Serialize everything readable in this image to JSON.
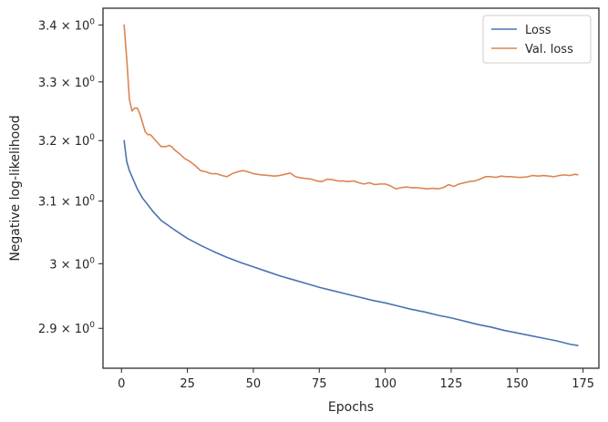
{
  "chart_data": {
    "type": "line",
    "title": "",
    "xlabel": "Epochs",
    "ylabel": "Negative log-likelihood",
    "yscale": "log",
    "xlim": [
      -7,
      181
    ],
    "ylim": [
      2.84,
      3.43
    ],
    "xticks": [
      0,
      25,
      50,
      75,
      100,
      125,
      150,
      175
    ],
    "yticks": [
      {
        "value": 2.9,
        "mantissa": "2.9",
        "exp": "0"
      },
      {
        "value": 3.0,
        "mantissa": "3",
        "exp": "0"
      },
      {
        "value": 3.1,
        "mantissa": "3.1",
        "exp": "0"
      },
      {
        "value": 3.2,
        "mantissa": "3.2",
        "exp": "0"
      },
      {
        "value": 3.3,
        "mantissa": "3.3",
        "exp": "0"
      },
      {
        "value": 3.4,
        "mantissa": "3.4",
        "exp": "0"
      }
    ],
    "grid": false,
    "legend_position": "top-right",
    "series": [
      {
        "name": "Loss",
        "color": "#4c72b0",
        "x": [
          1,
          2,
          3,
          4,
          5,
          6,
          8,
          10,
          12,
          15,
          18,
          20,
          25,
          30,
          35,
          40,
          45,
          50,
          55,
          60,
          65,
          70,
          75,
          80,
          85,
          90,
          95,
          100,
          105,
          110,
          115,
          120,
          125,
          130,
          135,
          140,
          145,
          150,
          155,
          160,
          165,
          170,
          173
        ],
        "y": [
          3.2,
          3.165,
          3.15,
          3.14,
          3.13,
          3.12,
          3.105,
          3.094,
          3.083,
          3.069,
          3.06,
          3.054,
          3.04,
          3.029,
          3.019,
          3.01,
          3.002,
          2.995,
          2.988,
          2.981,
          2.975,
          2.969,
          2.963,
          2.958,
          2.953,
          2.948,
          2.943,
          2.939,
          2.934,
          2.929,
          2.925,
          2.92,
          2.916,
          2.911,
          2.906,
          2.902,
          2.897,
          2.893,
          2.889,
          2.885,
          2.881,
          2.876,
          2.874
        ]
      },
      {
        "name": "Val. loss",
        "color": "#dd8452",
        "x": [
          1,
          2,
          3,
          4,
          5,
          6,
          7,
          8,
          9,
          10,
          11,
          12,
          13,
          14,
          15,
          16,
          17,
          18,
          19,
          20,
          22,
          24,
          26,
          28,
          30,
          32,
          34,
          36,
          38,
          40,
          42,
          44,
          46,
          48,
          50,
          53,
          56,
          58,
          60,
          62,
          64,
          66,
          68,
          70,
          72,
          74,
          76,
          78,
          80,
          82,
          84,
          86,
          88,
          90,
          92,
          94,
          96,
          98,
          100,
          102,
          104,
          106,
          108,
          110,
          112,
          114,
          116,
          118,
          120,
          122,
          124,
          126,
          128,
          130,
          132,
          134,
          136,
          138,
          140,
          142,
          144,
          146,
          148,
          150,
          152,
          154,
          156,
          158,
          160,
          162,
          164,
          166,
          168,
          170,
          172,
          173
        ],
        "y": [
          3.4,
          3.34,
          3.27,
          3.25,
          3.255,
          3.255,
          3.245,
          3.23,
          3.215,
          3.21,
          3.21,
          3.205,
          3.2,
          3.195,
          3.19,
          3.19,
          3.19,
          3.192,
          3.19,
          3.185,
          3.178,
          3.17,
          3.165,
          3.158,
          3.15,
          3.148,
          3.145,
          3.145,
          3.142,
          3.14,
          3.145,
          3.148,
          3.15,
          3.148,
          3.145,
          3.143,
          3.142,
          3.141,
          3.142,
          3.144,
          3.146,
          3.14,
          3.138,
          3.137,
          3.136,
          3.133,
          3.132,
          3.136,
          3.135,
          3.133,
          3.133,
          3.132,
          3.133,
          3.13,
          3.128,
          3.13,
          3.127,
          3.128,
          3.128,
          3.125,
          3.12,
          3.122,
          3.123,
          3.122,
          3.122,
          3.121,
          3.12,
          3.121,
          3.12,
          3.122,
          3.127,
          3.124,
          3.128,
          3.13,
          3.132,
          3.133,
          3.136,
          3.14,
          3.14,
          3.139,
          3.141,
          3.14,
          3.14,
          3.139,
          3.139,
          3.14,
          3.142,
          3.141,
          3.142,
          3.141,
          3.14,
          3.142,
          3.143,
          3.142,
          3.144,
          3.143
        ]
      }
    ]
  }
}
